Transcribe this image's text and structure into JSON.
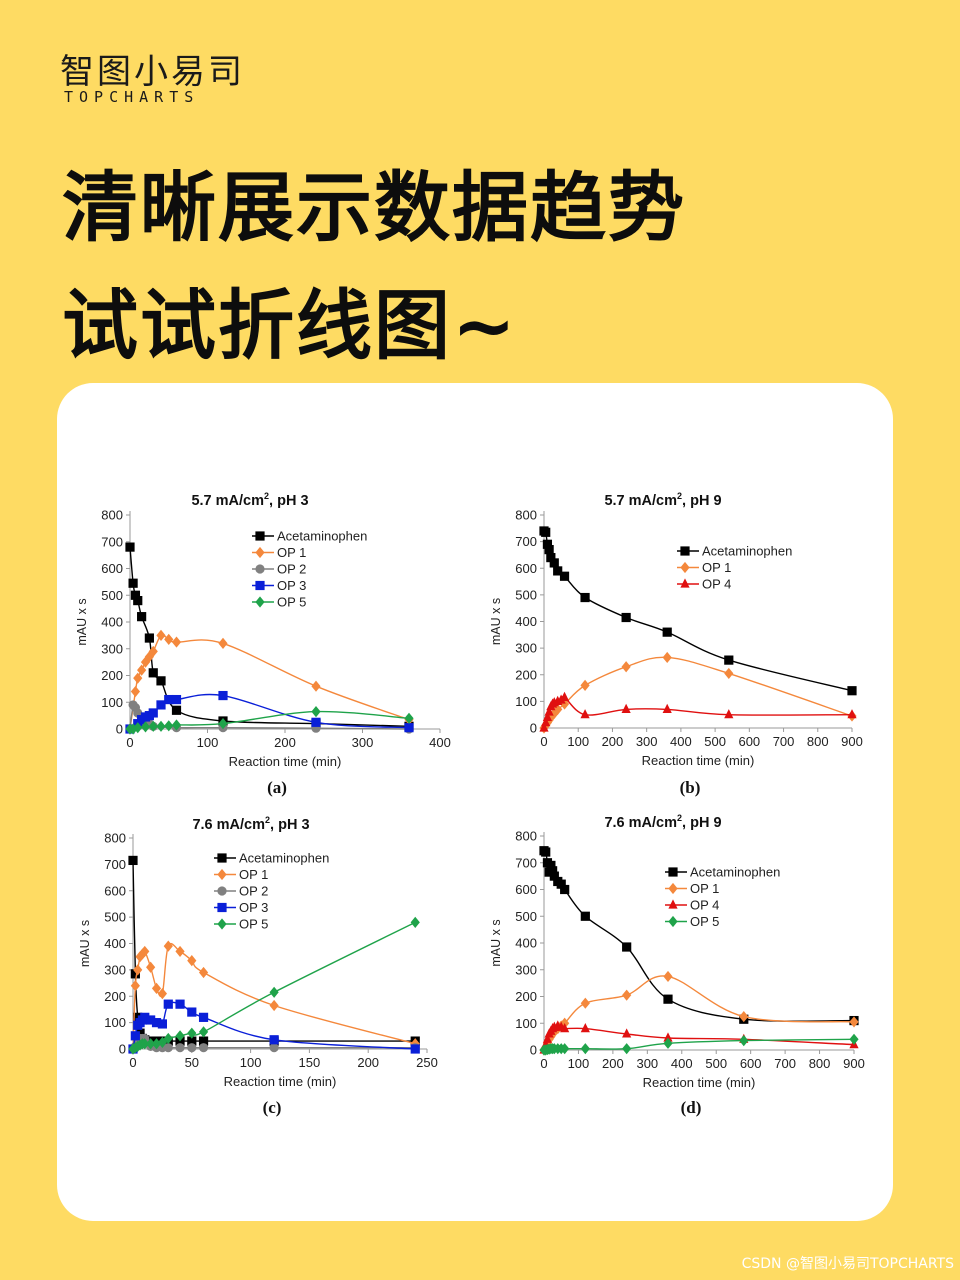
{
  "header": {
    "brand_cn": "智图小易司",
    "brand_en": "TOPCHARTS",
    "headline_line1": "清晰展示数据趋势",
    "headline_line2": "试试折线图~"
  },
  "footer": {
    "watermark": "CSDN @智图小易司TOPCHARTS"
  },
  "chart_data": [
    {
      "type": "line",
      "panel_label": "(a)",
      "title": "5.7 mA/cm², pH 3",
      "title_parts": [
        "5.7 mA/cm",
        "2",
        ", pH 3"
      ],
      "xlabel": "Reaction time (min)",
      "ylabel": "mAU x s",
      "xlim": [
        0,
        400
      ],
      "ylim": [
        0,
        800
      ],
      "xticks": [
        0,
        100,
        200,
        300,
        400
      ],
      "yticks": [
        0,
        100,
        200,
        300,
        400,
        500,
        600,
        700,
        800
      ],
      "legend_position": "top-right",
      "series": [
        {
          "name": "Acetaminophen",
          "color": "#000000",
          "marker": "square",
          "x": [
            0,
            4,
            7,
            10,
            15,
            25,
            30,
            40,
            60,
            120,
            240,
            360
          ],
          "y": [
            680,
            545,
            500,
            480,
            420,
            340,
            210,
            180,
            70,
            30,
            20,
            10
          ]
        },
        {
          "name": "OP 1",
          "color": "#F4883C",
          "marker": "diamond",
          "x": [
            0,
            7,
            10,
            15,
            20,
            25,
            30,
            40,
            50,
            60,
            120,
            240,
            360
          ],
          "y": [
            0,
            140,
            190,
            220,
            250,
            270,
            290,
            350,
            335,
            325,
            320,
            160,
            35
          ]
        },
        {
          "name": "OP 2",
          "color": "#808080",
          "marker": "circle",
          "x": [
            0,
            4,
            7,
            10,
            15,
            25,
            30,
            60,
            120,
            240,
            360
          ],
          "y": [
            0,
            90,
            80,
            60,
            30,
            20,
            10,
            5,
            5,
            3,
            0
          ]
        },
        {
          "name": "OP 3",
          "color": "#0A1FD8",
          "marker": "square",
          "x": [
            0,
            10,
            15,
            20,
            25,
            30,
            40,
            50,
            60,
            120,
            240,
            360
          ],
          "y": [
            0,
            20,
            35,
            45,
            50,
            60,
            90,
            110,
            110,
            125,
            25,
            5
          ]
        },
        {
          "name": "OP 5",
          "color": "#1FA34A",
          "marker": "diamond",
          "x": [
            0,
            4,
            10,
            20,
            30,
            40,
            50,
            60,
            120,
            240,
            360
          ],
          "y": [
            0,
            0,
            5,
            8,
            10,
            10,
            12,
            15,
            20,
            65,
            40
          ]
        }
      ]
    },
    {
      "type": "line",
      "panel_label": "(b)",
      "title": "5.7 mA/cm², pH 9",
      "title_parts": [
        "5.7 mA/cm",
        "2",
        ", pH 9"
      ],
      "xlabel": "Reaction time (min)",
      "ylabel": "mAU x s",
      "xlim": [
        0,
        900
      ],
      "ylim": [
        0,
        800
      ],
      "xticks": [
        0,
        100,
        200,
        300,
        400,
        500,
        600,
        700,
        800,
        900
      ],
      "yticks": [
        0,
        100,
        200,
        300,
        400,
        500,
        600,
        700,
        800
      ],
      "legend_position": "top-right",
      "series": [
        {
          "name": "Acetaminophen",
          "color": "#000000",
          "marker": "square",
          "x": [
            0,
            5,
            10,
            15,
            20,
            30,
            40,
            60,
            120,
            240,
            360,
            540,
            900
          ],
          "y": [
            740,
            735,
            690,
            670,
            640,
            620,
            590,
            570,
            490,
            415,
            360,
            255,
            140
          ]
        },
        {
          "name": "OP 1",
          "color": "#F4883C",
          "marker": "diamond",
          "x": [
            0,
            5,
            10,
            15,
            20,
            30,
            40,
            60,
            120,
            240,
            360,
            540,
            900
          ],
          "y": [
            0,
            10,
            20,
            30,
            40,
            55,
            70,
            90,
            160,
            230,
            265,
            205,
            45
          ]
        },
        {
          "name": "OP 4",
          "color": "#E01010",
          "marker": "triangle",
          "x": [
            0,
            5,
            10,
            15,
            20,
            25,
            30,
            40,
            50,
            60,
            120,
            240,
            360,
            540,
            900
          ],
          "y": [
            0,
            20,
            40,
            60,
            80,
            90,
            95,
            100,
            105,
            115,
            50,
            70,
            70,
            50,
            50
          ]
        }
      ]
    },
    {
      "type": "line",
      "panel_label": "(c)",
      "title": "7.6 mA/cm², pH 3",
      "title_parts": [
        "7.6 mA/cm",
        "2",
        ", pH 3"
      ],
      "xlabel": "Reaction time (min)",
      "ylabel": "mAU x s",
      "xlim": [
        0,
        250
      ],
      "ylim": [
        0,
        800
      ],
      "xticks": [
        0,
        50,
        100,
        150,
        200,
        250
      ],
      "yticks": [
        0,
        100,
        200,
        300,
        400,
        500,
        600,
        700,
        800
      ],
      "legend_position": "top-right",
      "series": [
        {
          "name": "Acetaminophen",
          "color": "#000000",
          "marker": "square",
          "x": [
            0,
            2,
            4,
            6,
            8,
            10,
            15,
            20,
            25,
            30,
            40,
            50,
            60,
            120,
            240
          ],
          "y": [
            715,
            285,
            120,
            60,
            40,
            35,
            30,
            30,
            30,
            30,
            30,
            30,
            30,
            30,
            30
          ]
        },
        {
          "name": "OP 1",
          "color": "#F4883C",
          "marker": "diamond",
          "x": [
            0,
            2,
            4,
            6,
            8,
            10,
            15,
            20,
            25,
            30,
            40,
            50,
            60,
            120,
            240
          ],
          "y": [
            0,
            240,
            300,
            350,
            360,
            370,
            310,
            230,
            210,
            390,
            370,
            335,
            290,
            165,
            20
          ]
        },
        {
          "name": "OP 2",
          "color": "#808080",
          "marker": "circle",
          "x": [
            0,
            2,
            4,
            6,
            8,
            10,
            15,
            20,
            25,
            30,
            40,
            50,
            60,
            120,
            240
          ],
          "y": [
            0,
            10,
            30,
            40,
            40,
            40,
            10,
            5,
            5,
            5,
            5,
            5,
            5,
            5,
            5
          ]
        },
        {
          "name": "OP 3",
          "color": "#0A1FD8",
          "marker": "square",
          "x": [
            0,
            2,
            4,
            6,
            8,
            10,
            15,
            20,
            25,
            30,
            40,
            50,
            60,
            120,
            240
          ],
          "y": [
            0,
            50,
            90,
            100,
            110,
            120,
            110,
            100,
            95,
            170,
            170,
            140,
            120,
            35,
            0
          ]
        },
        {
          "name": "OP 5",
          "color": "#1FA34A",
          "marker": "diamond",
          "x": [
            0,
            2,
            4,
            6,
            8,
            10,
            15,
            20,
            25,
            30,
            40,
            50,
            60,
            120,
            240
          ],
          "y": [
            0,
            5,
            10,
            15,
            20,
            20,
            20,
            20,
            25,
            40,
            50,
            60,
            65,
            215,
            480
          ]
        }
      ]
    },
    {
      "type": "line",
      "panel_label": "(d)",
      "title": "7.6 mA/cm², pH 9",
      "title_parts": [
        "7.6 mA/cm",
        "2",
        ", pH 9"
      ],
      "xlabel": "Reaction time (min)",
      "ylabel": "mAU x s",
      "xlim": [
        0,
        900
      ],
      "ylim": [
        0,
        800
      ],
      "xticks": [
        0,
        100,
        200,
        300,
        400,
        500,
        600,
        700,
        800,
        900
      ],
      "yticks": [
        0,
        100,
        200,
        300,
        400,
        500,
        600,
        700,
        800
      ],
      "legend_position": "top-right",
      "series": [
        {
          "name": "Acetaminophen",
          "color": "#000000",
          "marker": "square",
          "x": [
            0,
            5,
            10,
            15,
            20,
            25,
            30,
            40,
            50,
            60,
            120,
            240,
            360,
            580,
            900
          ],
          "y": [
            745,
            740,
            700,
            665,
            690,
            670,
            650,
            630,
            620,
            600,
            500,
            385,
            190,
            115,
            110
          ]
        },
        {
          "name": "OP 1",
          "color": "#F4883C",
          "marker": "diamond",
          "x": [
            0,
            5,
            10,
            15,
            20,
            25,
            30,
            40,
            50,
            60,
            120,
            240,
            360,
            580,
            900
          ],
          "y": [
            0,
            10,
            25,
            40,
            50,
            60,
            70,
            80,
            90,
            100,
            175,
            205,
            275,
            125,
            105
          ]
        },
        {
          "name": "OP 4",
          "color": "#E01010",
          "marker": "triangle",
          "x": [
            0,
            5,
            10,
            15,
            20,
            25,
            30,
            40,
            50,
            60,
            120,
            240,
            360,
            580,
            900
          ],
          "y": [
            0,
            20,
            40,
            60,
            70,
            80,
            85,
            90,
            85,
            80,
            80,
            60,
            45,
            40,
            20
          ]
        },
        {
          "name": "OP 5",
          "color": "#1FA34A",
          "marker": "diamond",
          "x": [
            0,
            5,
            10,
            15,
            20,
            25,
            30,
            40,
            50,
            60,
            120,
            240,
            360,
            580,
            900
          ],
          "y": [
            0,
            0,
            2,
            3,
            5,
            5,
            5,
            5,
            5,
            5,
            5,
            5,
            25,
            35,
            40
          ]
        }
      ]
    }
  ]
}
